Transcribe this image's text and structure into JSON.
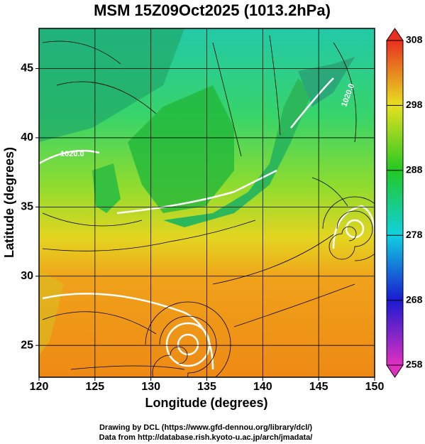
{
  "chart_data": {
    "type": "map",
    "title": "MSM 15Z09Oct2025 (1013.2hPa)",
    "xlabel": "Longitude (degrees)",
    "ylabel": "Latitude  (degrees)",
    "xlim": [
      120,
      150
    ],
    "ylim": [
      22.7,
      47.9
    ],
    "xticks": [
      120,
      125,
      130,
      135,
      140,
      145,
      150
    ],
    "yticks": [
      25,
      30,
      35,
      40,
      45
    ],
    "grid": true,
    "colorbar": {
      "lim": [
        258,
        308
      ],
      "ticks": [
        258,
        268,
        278,
        288,
        298,
        308
      ]
    },
    "annotations": [
      "1020.0",
      "1020.0"
    ],
    "footer": [
      "Drawing by DCL (https://www.gfd-dennou.org/library/dcl/)",
      "Data from http://database.rish.kyoto-u.ac.jp/arch/jmadata/"
    ]
  }
}
